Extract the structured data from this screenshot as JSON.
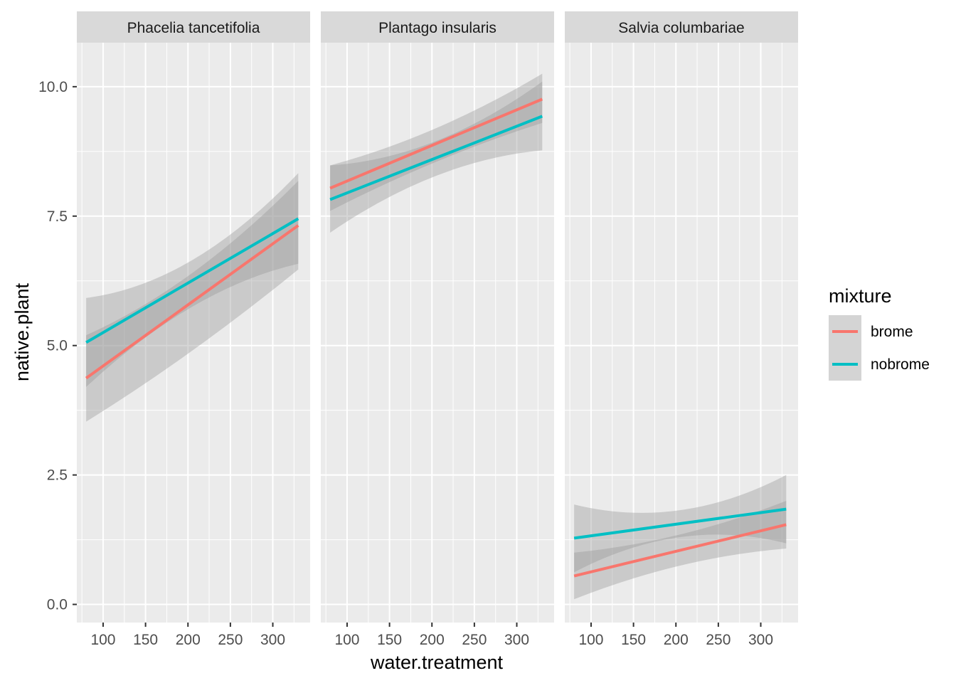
{
  "chart_data": {
    "type": "line",
    "title": "",
    "xlabel": "water.treatment",
    "ylabel": "native.plant",
    "xlim": [
      69,
      344
    ],
    "ylim": [
      -0.35,
      10.85
    ],
    "x_ticks": [
      100,
      150,
      200,
      250,
      300
    ],
    "x_tick_labels": [
      "100",
      "150",
      "200",
      "250",
      "300"
    ],
    "y_ticks": [
      0,
      2.5,
      5,
      7.5,
      10
    ],
    "y_tick_labels": [
      "0.0",
      "2.5",
      "5.0",
      "7.5",
      "10.0"
    ],
    "x_range_fit": [
      80,
      330
    ],
    "legend": {
      "title": "mixture",
      "position": "right",
      "entries": [
        {
          "label": "brome",
          "color": "#F8766D"
        },
        {
          "label": "nobrome",
          "color": "#00BFC4"
        }
      ]
    },
    "colors": {
      "brome": "#F8766D",
      "nobrome": "#00BFC4",
      "ribbon": "#999999",
      "panel_bg": "#EBEBEB",
      "strip_bg": "#D9D9D9"
    },
    "panels": [
      {
        "label": "Phacelia tancetifolia",
        "series": [
          {
            "name": "brome",
            "x": [
              80,
              330
            ],
            "y": [
              4.37,
              7.32
            ],
            "lower": [
              3.53,
              6.47
            ],
            "upper": [
              5.2,
              8.18
            ],
            "mid_band": [
              4.9,
              6.4
            ]
          },
          {
            "name": "nobrome",
            "x": [
              80,
              330
            ],
            "y": [
              5.06,
              7.45
            ],
            "lower": [
              4.2,
              6.58
            ],
            "upper": [
              5.92,
              8.33
            ],
            "mid_band": [
              5.75,
              6.65
            ]
          }
        ]
      },
      {
        "label": "Plantago insularis",
        "series": [
          {
            "name": "brome",
            "x": [
              80,
              330
            ],
            "y": [
              8.04,
              9.76
            ],
            "lower": [
              7.6,
              9.3
            ],
            "upper": [
              8.48,
              10.25
            ],
            "mid_band": [
              8.55,
              9.2
            ]
          },
          {
            "name": "nobrome",
            "x": [
              80,
              330
            ],
            "y": [
              7.82,
              9.43
            ],
            "lower": [
              7.18,
              8.77
            ],
            "upper": [
              8.48,
              10.1
            ],
            "mid_band": [
              8.28,
              8.95
            ]
          }
        ]
      },
      {
        "label": "Salvia columbariae",
        "series": [
          {
            "name": "brome",
            "x": [
              80,
              330
            ],
            "y": [
              0.55,
              1.54
            ],
            "lower": [
              0.1,
              1.08
            ],
            "upper": [
              1.0,
              2.0
            ],
            "mid_band": [
              0.75,
              1.35
            ]
          },
          {
            "name": "nobrome",
            "x": [
              80,
              330
            ],
            "y": [
              1.28,
              1.84
            ],
            "lower": [
              0.62,
              1.18
            ],
            "upper": [
              1.93,
              2.5
            ],
            "mid_band": [
              1.3,
              1.82
            ]
          }
        ]
      }
    ]
  }
}
